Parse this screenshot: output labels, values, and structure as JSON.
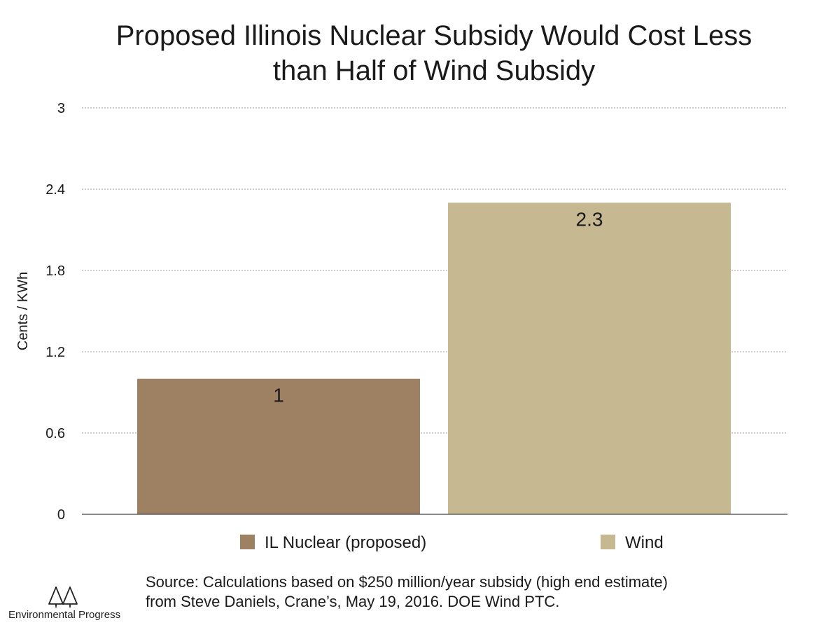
{
  "colors": {
    "nuclear": "#9e8163",
    "wind": "#c6b890",
    "grid": "#9a9a9a",
    "axis": "#444444",
    "text": "#1a1a1a"
  },
  "chart_data": {
    "type": "bar",
    "title": [
      "Proposed Illinois Nuclear Subsidy Would Cost Less",
      "than Half of Wind Subsidy"
    ],
    "xlabel": "",
    "ylabel": "Cents / KWh",
    "categories": [
      "IL Nuclear (proposed)",
      "Wind"
    ],
    "values": [
      1,
      2.3
    ],
    "data_labels": [
      "1",
      "2.3"
    ],
    "ylim": [
      0,
      3
    ],
    "yticks": [
      0,
      0.6,
      1.2,
      1.8,
      2.4,
      3
    ],
    "ytick_labels": [
      "0",
      "0.6",
      "1.2",
      "1.8",
      "2.4",
      "3"
    ],
    "grid": true,
    "legend": {
      "position": "bottom",
      "entries": [
        "IL Nuclear (proposed)",
        "Wind"
      ]
    }
  },
  "footer": {
    "source_lines": [
      "Source: Calculations based on $250 million/year subsidy (high end estimate)",
      "from Steve Daniels, Crane’s, May 19, 2016. DOE Wind PTC."
    ],
    "logo_text": "Environmental Progress",
    "logo_icon": "trees-logo-icon"
  }
}
